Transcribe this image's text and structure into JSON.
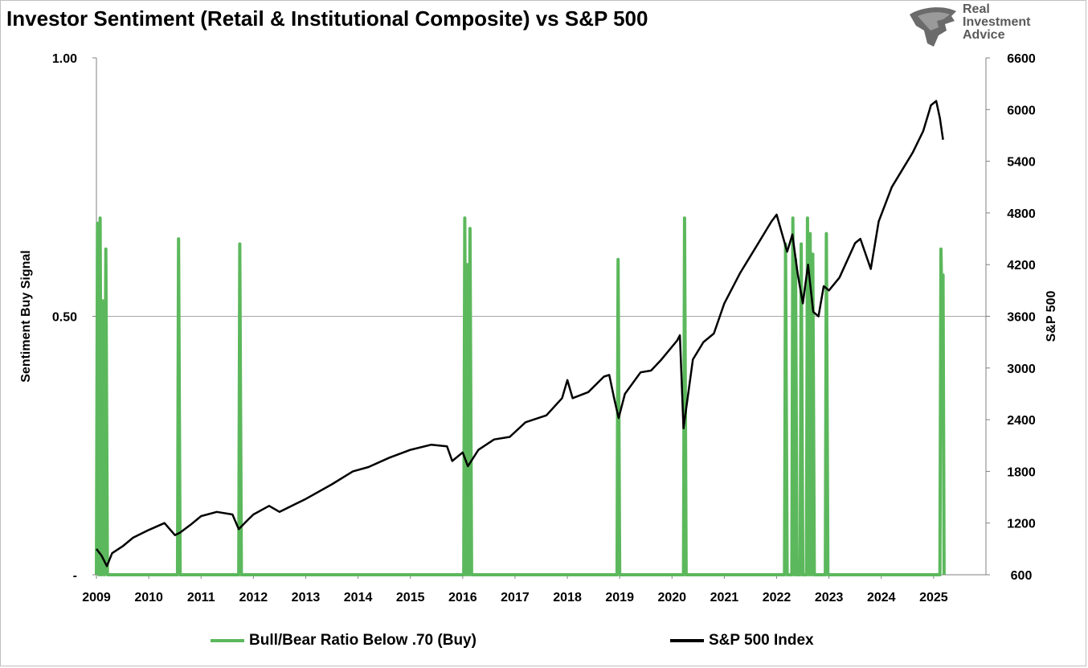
{
  "title": "Investor Sentiment (Retail & Institutional Composite) vs S&P 500",
  "logo": {
    "line1": "Real",
    "line2": "Investment",
    "line3": "Advice"
  },
  "colors": {
    "green": "#5cb85c",
    "black": "#000000",
    "grid": "#a6a6a6",
    "axis": "#808080"
  },
  "chart_data": {
    "type": "line",
    "title": "Investor Sentiment (Retail & Institutional Composite) vs S&P 500",
    "ylabel_left": "Sentiment Buy Signal",
    "ylabel_right": "S&P 500",
    "left_ticks": [
      "1.00",
      "0.50",
      "-"
    ],
    "left_ylim": [
      0,
      1
    ],
    "right_ylim": [
      600,
      6600
    ],
    "right_ticks": [
      "6600",
      "6000",
      "5400",
      "4800",
      "4200",
      "3600",
      "3000",
      "2400",
      "1800",
      "1200",
      "600"
    ],
    "xlim": [
      2009.0,
      2026.0
    ],
    "x_ticks": [
      "2009",
      "2010",
      "2011",
      "2012",
      "2013",
      "2014",
      "2015",
      "2016",
      "2017",
      "2018",
      "2019",
      "2020",
      "2021",
      "2022",
      "2023",
      "2024",
      "2025"
    ],
    "series": [
      {
        "name": "Bull/Bear Ratio Below .70 (Buy)",
        "axis": "left",
        "points": [
          [
            2009.0,
            0
          ],
          [
            2009.02,
            0.68
          ],
          [
            2009.05,
            0
          ],
          [
            2009.07,
            0.69
          ],
          [
            2009.1,
            0
          ],
          [
            2009.12,
            0.53
          ],
          [
            2009.15,
            0
          ],
          [
            2009.18,
            0.63
          ],
          [
            2009.21,
            0
          ],
          [
            2010.55,
            0
          ],
          [
            2010.57,
            0.65
          ],
          [
            2010.6,
            0
          ],
          [
            2011.72,
            0
          ],
          [
            2011.74,
            0.64
          ],
          [
            2011.77,
            0
          ],
          [
            2016.02,
            0
          ],
          [
            2016.04,
            0.69
          ],
          [
            2016.07,
            0
          ],
          [
            2016.09,
            0.6
          ],
          [
            2016.12,
            0
          ],
          [
            2016.14,
            0.67
          ],
          [
            2016.17,
            0
          ],
          [
            2018.95,
            0
          ],
          [
            2018.97,
            0.61
          ],
          [
            2019.0,
            0
          ],
          [
            2020.22,
            0
          ],
          [
            2020.24,
            0.69
          ],
          [
            2020.27,
            0
          ],
          [
            2022.15,
            0
          ],
          [
            2022.17,
            0.64
          ],
          [
            2022.2,
            0
          ],
          [
            2022.29,
            0
          ],
          [
            2022.31,
            0.69
          ],
          [
            2022.34,
            0
          ],
          [
            2022.36,
            0.61
          ],
          [
            2022.39,
            0
          ],
          [
            2022.45,
            0
          ],
          [
            2022.47,
            0.64
          ],
          [
            2022.5,
            0
          ],
          [
            2022.57,
            0
          ],
          [
            2022.59,
            0.69
          ],
          [
            2022.62,
            0
          ],
          [
            2022.64,
            0.66
          ],
          [
            2022.67,
            0
          ],
          [
            2022.69,
            0.62
          ],
          [
            2022.72,
            0
          ],
          [
            2022.93,
            0
          ],
          [
            2022.95,
            0.66
          ],
          [
            2022.98,
            0
          ],
          [
            2025.12,
            0
          ],
          [
            2025.14,
            0.63
          ],
          [
            2025.16,
            0.51
          ],
          [
            2025.18,
            0.58
          ],
          [
            2025.2,
            0
          ]
        ]
      },
      {
        "name": "S&P 500 Index",
        "axis": "right",
        "points": [
          [
            2009.0,
            900
          ],
          [
            2009.1,
            820
          ],
          [
            2009.2,
            700
          ],
          [
            2009.3,
            850
          ],
          [
            2009.5,
            930
          ],
          [
            2009.7,
            1030
          ],
          [
            2010.0,
            1120
          ],
          [
            2010.3,
            1200
          ],
          [
            2010.5,
            1060
          ],
          [
            2010.6,
            1090
          ],
          [
            2010.8,
            1180
          ],
          [
            2011.0,
            1280
          ],
          [
            2011.3,
            1330
          ],
          [
            2011.6,
            1300
          ],
          [
            2011.72,
            1130
          ],
          [
            2011.9,
            1240
          ],
          [
            2012.0,
            1300
          ],
          [
            2012.3,
            1400
          ],
          [
            2012.5,
            1330
          ],
          [
            2012.8,
            1420
          ],
          [
            2013.0,
            1480
          ],
          [
            2013.5,
            1650
          ],
          [
            2013.9,
            1800
          ],
          [
            2014.2,
            1850
          ],
          [
            2014.6,
            1960
          ],
          [
            2015.0,
            2050
          ],
          [
            2015.4,
            2110
          ],
          [
            2015.7,
            2090
          ],
          [
            2015.8,
            1920
          ],
          [
            2016.0,
            2020
          ],
          [
            2016.1,
            1860
          ],
          [
            2016.3,
            2050
          ],
          [
            2016.6,
            2170
          ],
          [
            2016.9,
            2200
          ],
          [
            2017.2,
            2370
          ],
          [
            2017.6,
            2450
          ],
          [
            2017.9,
            2650
          ],
          [
            2018.0,
            2860
          ],
          [
            2018.1,
            2650
          ],
          [
            2018.4,
            2720
          ],
          [
            2018.7,
            2900
          ],
          [
            2018.8,
            2920
          ],
          [
            2018.9,
            2630
          ],
          [
            2018.98,
            2420
          ],
          [
            2019.1,
            2700
          ],
          [
            2019.4,
            2950
          ],
          [
            2019.6,
            2970
          ],
          [
            2019.8,
            3100
          ],
          [
            2020.1,
            3320
          ],
          [
            2020.15,
            3380
          ],
          [
            2020.22,
            2300
          ],
          [
            2020.4,
            3100
          ],
          [
            2020.6,
            3300
          ],
          [
            2020.8,
            3400
          ],
          [
            2021.0,
            3750
          ],
          [
            2021.3,
            4100
          ],
          [
            2021.6,
            4400
          ],
          [
            2021.9,
            4700
          ],
          [
            2022.0,
            4780
          ],
          [
            2022.2,
            4350
          ],
          [
            2022.3,
            4550
          ],
          [
            2022.4,
            4100
          ],
          [
            2022.5,
            3750
          ],
          [
            2022.6,
            4200
          ],
          [
            2022.7,
            3650
          ],
          [
            2022.8,
            3600
          ],
          [
            2022.9,
            3950
          ],
          [
            2023.0,
            3900
          ],
          [
            2023.2,
            4050
          ],
          [
            2023.5,
            4450
          ],
          [
            2023.6,
            4500
          ],
          [
            2023.8,
            4150
          ],
          [
            2023.95,
            4700
          ],
          [
            2024.2,
            5100
          ],
          [
            2024.4,
            5300
          ],
          [
            2024.6,
            5500
          ],
          [
            2024.8,
            5750
          ],
          [
            2024.95,
            6050
          ],
          [
            2025.05,
            6100
          ],
          [
            2025.12,
            5900
          ],
          [
            2025.18,
            5650
          ]
        ]
      }
    ]
  },
  "legend": [
    {
      "label": "Bull/Bear Ratio Below .70 (Buy)"
    },
    {
      "label": "S&P 500 Index"
    }
  ]
}
